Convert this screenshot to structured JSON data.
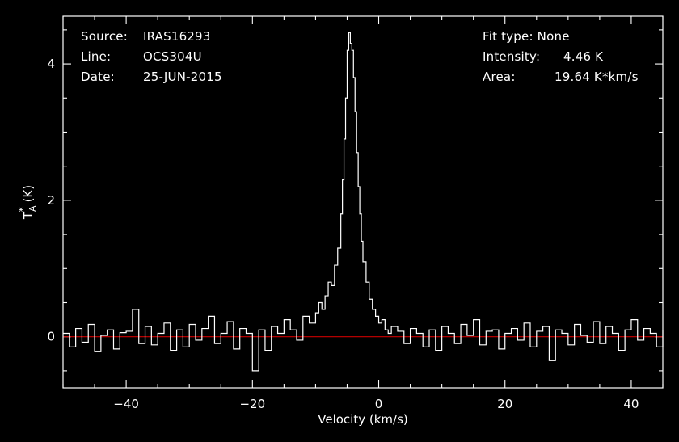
{
  "info": {
    "source_label": "Source:",
    "source": "IRAS16293",
    "line_label": "Line:",
    "line": "OCS304U",
    "date_label": "Date:",
    "date": "25-JUN-2015",
    "fit_type": "Fit type: None",
    "intensity_label": "Intensity:",
    "intensity": "4.46 K",
    "area_label": "Area:",
    "area": "19.64 K*km/s"
  },
  "chart_data": {
    "type": "line",
    "xlabel": "Velocity (km/s)",
    "ylabel": "T",
    "ylabel_sub": "A",
    "ylabel_sup": "*",
    "ylabel_unit": "(K)",
    "xlim": [
      -50,
      45
    ],
    "ylim": [
      -0.75,
      4.7
    ],
    "xticks": [
      -40,
      -20,
      0,
      20,
      40
    ],
    "xtick_labels": [
      "−40",
      "−20",
      "0",
      "20",
      "40"
    ],
    "yticks": [
      0,
      2,
      4
    ],
    "ytick_labels": [
      "0",
      "2",
      "4"
    ],
    "baseline": 0,
    "colors": {
      "background": "#000000",
      "spectrum": "#ffffff",
      "baseline": "#cc0000",
      "axes": "#ffffff"
    },
    "series": [
      {
        "x": [
          -50,
          -49,
          -48,
          -47,
          -46,
          -45,
          -44,
          -43,
          -42,
          -41,
          -40,
          -39,
          -38,
          -37,
          -36,
          -35,
          -34,
          -33,
          -32,
          -31,
          -30,
          -29,
          -28,
          -27,
          -26,
          -25,
          -24,
          -23,
          -22,
          -21,
          -20,
          -19,
          -18,
          -17,
          -16,
          -15,
          -14,
          -13,
          -12,
          -11,
          -10,
          -9.5,
          -9,
          -8.5,
          -8,
          -7.5,
          -7,
          -6.5,
          -6,
          -5.75,
          -5.5,
          -5.25,
          -5,
          -4.75,
          -4.5,
          -4.25,
          -4,
          -3.75,
          -3.5,
          -3.25,
          -3,
          -2.75,
          -2.5,
          -2,
          -1.5,
          -1,
          -0.5,
          0,
          0.5,
          1,
          1.5,
          2,
          3,
          4,
          5,
          6,
          7,
          8,
          9,
          10,
          11,
          12,
          13,
          14,
          15,
          16,
          17,
          18,
          19,
          20,
          21,
          22,
          23,
          24,
          25,
          26,
          27,
          28,
          29,
          30,
          31,
          32,
          33,
          34,
          35,
          36,
          37,
          38,
          39,
          40,
          41,
          42,
          43,
          44,
          45
        ],
        "y": [
          0.05,
          -0.15,
          0.12,
          -0.08,
          0.18,
          -0.22,
          0.02,
          0.1,
          -0.18,
          0.06,
          0.08,
          0.4,
          -0.1,
          0.15,
          -0.12,
          0.05,
          0.2,
          -0.2,
          0.1,
          -0.15,
          0.18,
          -0.05,
          0.12,
          0.3,
          -0.1,
          0.05,
          0.22,
          -0.18,
          0.12,
          0.05,
          -0.5,
          0.1,
          -0.2,
          0.15,
          0.05,
          0.25,
          0.1,
          -0.05,
          0.3,
          0.2,
          0.35,
          0.5,
          0.4,
          0.6,
          0.8,
          0.75,
          1.05,
          1.3,
          1.8,
          2.3,
          2.9,
          3.5,
          4.2,
          4.46,
          4.3,
          4.2,
          3.8,
          3.3,
          2.7,
          2.2,
          1.8,
          1.4,
          1.1,
          0.8,
          0.55,
          0.4,
          0.3,
          0.2,
          0.25,
          0.1,
          0.05,
          0.15,
          0.08,
          -0.1,
          0.12,
          0.05,
          -0.15,
          0.1,
          -0.2,
          0.15,
          0.05,
          -0.1,
          0.18,
          0.02,
          0.25,
          -0.12,
          0.08,
          0.1,
          -0.18,
          0.05,
          0.12,
          -0.05,
          0.2,
          -0.15,
          0.08,
          0.15,
          -0.35,
          0.1,
          0.05,
          -0.12,
          0.18,
          0.02,
          -0.08,
          0.22,
          -0.1,
          0.15,
          0.05,
          -0.2,
          0.1,
          0.25,
          -0.05,
          0.12,
          0.05,
          -0.15,
          0.1
        ]
      }
    ]
  }
}
